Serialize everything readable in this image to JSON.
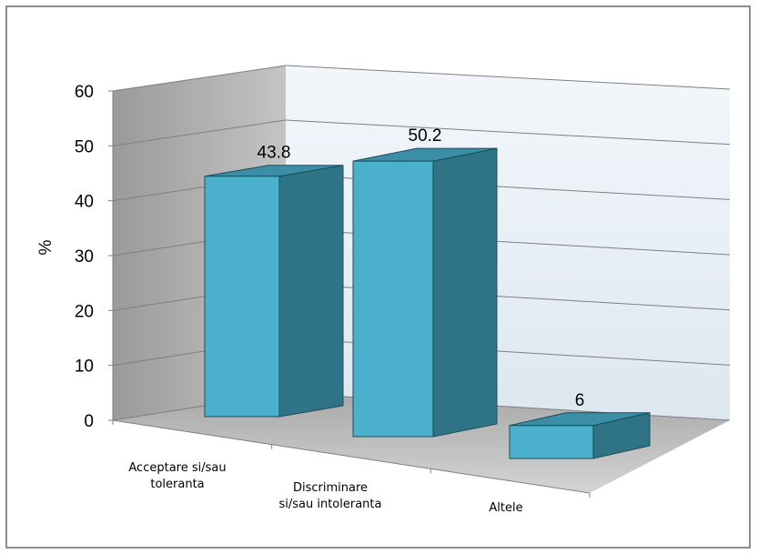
{
  "chart_data": {
    "type": "bar",
    "style": "3d-column",
    "categories": [
      [
        "Acceptare si/sau",
        "toleranta"
      ],
      [
        "Discriminare",
        "si/sau intoleranta"
      ],
      [
        "Altele"
      ]
    ],
    "values": [
      43.8,
      50.2,
      6
    ],
    "data_labels": [
      "43.8",
      "50.2",
      "6"
    ],
    "ylabel": "%",
    "ylim": [
      0,
      60
    ],
    "yticks": [
      0,
      10,
      20,
      30,
      40,
      50,
      60
    ],
    "ytick_labels": [
      "0",
      "10",
      "20",
      "30",
      "40",
      "50",
      "60"
    ],
    "grid": true,
    "legend": "none",
    "colors": {
      "bar_front": "#4bb0cc",
      "bar_side": "#2f7386",
      "bar_top": "#3a8ea6",
      "bar_edge": "#1c4c5a",
      "back_wall": "#e4edf5",
      "side_wall": "#a9a9a9",
      "floor": "#bfbfbf",
      "gridline": "#7f7f7f"
    }
  }
}
